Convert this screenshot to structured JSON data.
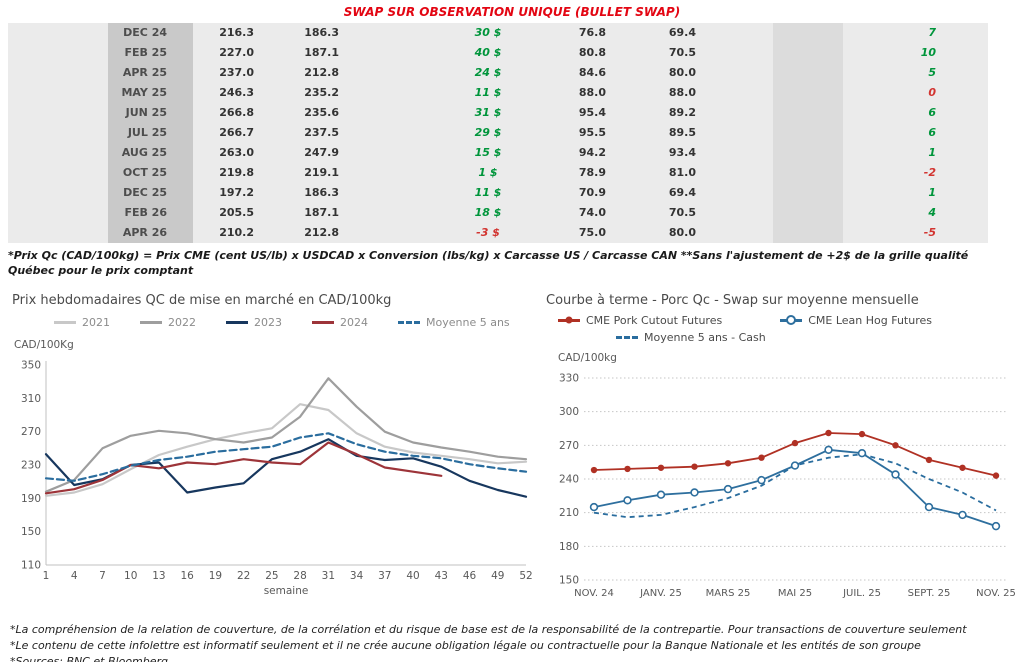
{
  "page": {
    "title": "SWAP SUR OBSERVATION UNIQUE (BULLET SWAP)",
    "title_color": "#e30613"
  },
  "colors": {
    "positive": "#00953b",
    "negative": "#d23430",
    "table_band": "#ebebeb",
    "month_column": "#c9c9c9"
  },
  "table": {
    "rows": [
      {
        "month": "DEC 24",
        "swap_cad": "216.3",
        "cash_cad": "186.3",
        "diff_cad": "30 $",
        "diff_cad_color": "positive",
        "swap_us": "76.8",
        "cash_us": "69.4",
        "diff_us": "7",
        "diff_us_color": "positive"
      },
      {
        "month": "FEB 25",
        "swap_cad": "227.0",
        "cash_cad": "187.1",
        "diff_cad": "40 $",
        "diff_cad_color": "positive",
        "swap_us": "80.8",
        "cash_us": "70.5",
        "diff_us": "10",
        "diff_us_color": "positive"
      },
      {
        "month": "APR 25",
        "swap_cad": "237.0",
        "cash_cad": "212.8",
        "diff_cad": "24 $",
        "diff_cad_color": "positive",
        "swap_us": "84.6",
        "cash_us": "80.0",
        "diff_us": "5",
        "diff_us_color": "positive"
      },
      {
        "month": "MAY 25",
        "swap_cad": "246.3",
        "cash_cad": "235.2",
        "diff_cad": "11 $",
        "diff_cad_color": "positive",
        "swap_us": "88.0",
        "cash_us": "88.0",
        "diff_us": "0",
        "diff_us_color": "negative"
      },
      {
        "month": "JUN 25",
        "swap_cad": "266.8",
        "cash_cad": "235.6",
        "diff_cad": "31 $",
        "diff_cad_color": "positive",
        "swap_us": "95.4",
        "cash_us": "89.2",
        "diff_us": "6",
        "diff_us_color": "positive"
      },
      {
        "month": "JUL 25",
        "swap_cad": "266.7",
        "cash_cad": "237.5",
        "diff_cad": "29 $",
        "diff_cad_color": "positive",
        "swap_us": "95.5",
        "cash_us": "89.5",
        "diff_us": "6",
        "diff_us_color": "positive"
      },
      {
        "month": "AUG 25",
        "swap_cad": "263.0",
        "cash_cad": "247.9",
        "diff_cad": "15 $",
        "diff_cad_color": "positive",
        "swap_us": "94.2",
        "cash_us": "93.4",
        "diff_us": "1",
        "diff_us_color": "positive"
      },
      {
        "month": "OCT 25",
        "swap_cad": "219.8",
        "cash_cad": "219.1",
        "diff_cad": "1 $",
        "diff_cad_color": "positive",
        "swap_us": "78.9",
        "cash_us": "81.0",
        "diff_us": "-2",
        "diff_us_color": "negative"
      },
      {
        "month": "DEC 25",
        "swap_cad": "197.2",
        "cash_cad": "186.3",
        "diff_cad": "11 $",
        "diff_cad_color": "positive",
        "swap_us": "70.9",
        "cash_us": "69.4",
        "diff_us": "1",
        "diff_us_color": "positive"
      },
      {
        "month": "FEB 26",
        "swap_cad": "205.5",
        "cash_cad": "187.1",
        "diff_cad": "18 $",
        "diff_cad_color": "positive",
        "swap_us": "74.0",
        "cash_us": "70.5",
        "diff_us": "4",
        "diff_us_color": "positive"
      },
      {
        "month": "APR 26",
        "swap_cad": "210.2",
        "cash_cad": "212.8",
        "diff_cad": "-3 $",
        "diff_cad_color": "negative",
        "swap_us": "75.0",
        "cash_us": "80.0",
        "diff_us": "-5",
        "diff_us_color": "negative"
      }
    ],
    "footnote": "*Prix Qc (CAD/100kg) = Prix CME (cent US/lb) x USDCAD x Conversion (lbs/kg) x Carcasse US / Carcasse CAN **Sans l'ajustement de +2$ de la grille qualité Québec pour le prix comptant"
  },
  "chart_data": [
    {
      "type": "line",
      "title": "Prix hebdomadaires QC de mise en marché en CAD/100kg",
      "y_axis_label": "CAD/100Kg",
      "xlabel": "semaine",
      "ylim": [
        110,
        350
      ],
      "yticks": [
        350,
        310,
        270,
        230,
        190,
        150,
        110
      ],
      "xticks": [
        1,
        4,
        7,
        10,
        13,
        16,
        19,
        22,
        25,
        28,
        31,
        34,
        37,
        40,
        43,
        46,
        49,
        52
      ],
      "x_weeks": [
        1,
        4,
        7,
        10,
        13,
        16,
        19,
        22,
        25,
        28,
        31,
        34,
        37,
        40,
        43,
        46,
        49,
        52
      ],
      "grid": false,
      "axis_lines": true,
      "legend_position": "top",
      "series": [
        {
          "name": "2021",
          "color": "#c8c8c8",
          "style": "solid",
          "marker": "none",
          "values": [
            193,
            197,
            207,
            225,
            242,
            252,
            261,
            268,
            274,
            303,
            296,
            268,
            252,
            245,
            241,
            237,
            232,
            234
          ]
        },
        {
          "name": "2022",
          "color": "#9e9e9e",
          "style": "solid",
          "marker": "none",
          "values": [
            198,
            212,
            250,
            265,
            271,
            268,
            261,
            257,
            263,
            288,
            334,
            300,
            270,
            257,
            251,
            246,
            240,
            237
          ]
        },
        {
          "name": "2023",
          "color": "#17375e",
          "style": "solid",
          "marker": "none",
          "values": [
            243,
            206,
            213,
            230,
            233,
            197,
            203,
            208,
            237,
            246,
            261,
            241,
            236,
            238,
            228,
            211,
            200,
            192
          ]
        },
        {
          "name": "2024",
          "color": "#9d3439",
          "style": "solid",
          "marker": "none",
          "values": [
            196,
            201,
            212,
            230,
            226,
            233,
            231,
            237,
            233,
            231,
            257,
            243,
            227,
            222,
            217,
            null,
            null,
            null
          ]
        },
        {
          "name": "Moyenne 5 ans",
          "color": "#2a6d9e",
          "style": "dashed",
          "marker": "none",
          "values": [
            214,
            211,
            219,
            229,
            236,
            240,
            246,
            249,
            252,
            263,
            268,
            255,
            246,
            241,
            238,
            231,
            226,
            222
          ]
        }
      ]
    },
    {
      "type": "line",
      "title": "Courbe à terme - Porc Qc - Swap sur moyenne mensuelle",
      "y_axis_label": "CAD/100kg",
      "xlabel": "",
      "ylim": [
        150,
        330
      ],
      "yticks": [
        330,
        300,
        270,
        240,
        210,
        180,
        150
      ],
      "x_tick_labels": [
        "NOV. 24",
        "JANV. 25",
        "MARS 25",
        "MAI 25",
        "JUIL. 25",
        "SEPT. 25",
        "NOV. 25"
      ],
      "n_points": 13,
      "grid": true,
      "axis_lines": false,
      "legend_position": "top",
      "series": [
        {
          "name": "CME Pork Cutout Futures",
          "color": "#b03124",
          "style": "solid",
          "marker": "filled",
          "values": [
            248,
            249,
            250,
            251,
            254,
            259,
            272,
            281,
            280,
            270,
            257,
            250,
            243
          ]
        },
        {
          "name": "CME Lean Hog Futures",
          "color": "#2e6f9e",
          "style": "solid",
          "marker": "open",
          "values": [
            215,
            221,
            226,
            228,
            231,
            239,
            252,
            266,
            263,
            244,
            215,
            208,
            198
          ]
        },
        {
          "name": "Moyenne 5 ans - Cash",
          "color": "#2a6d9e",
          "style": "dashed",
          "marker": "none",
          "values": [
            210,
            206,
            208,
            215,
            223,
            234,
            252,
            259,
            262,
            254,
            240,
            228,
            212
          ]
        }
      ]
    }
  ],
  "footer_notes": [
    "*La compréhension de la relation de couverture, de la corrélation et du risque de base est de la responsabilité de la contrepartie. Pour transactions de couverture seulement",
    "*Le contenu de cette infolettre est informatif seulement et il ne crée aucune obligation légale ou contractuelle pour la Banque Nationale et les entités de son groupe",
    "*Sources: BNC et Bloomberg"
  ]
}
